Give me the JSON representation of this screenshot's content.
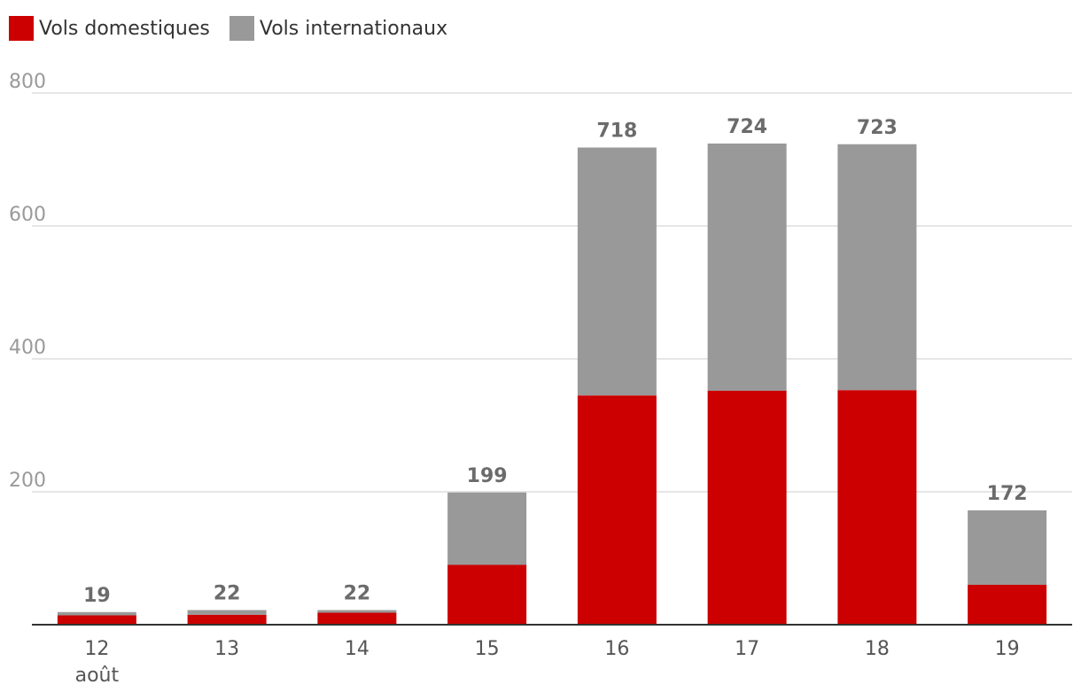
{
  "legend": {
    "domestic_label": "Vols domestiques",
    "international_label": "Vols internationaux"
  },
  "colors": {
    "domestic": "#cc0000",
    "international": "#999999",
    "grid": "#dddddd",
    "axis": "#333333"
  },
  "chart_data": {
    "type": "bar",
    "stacked": true,
    "categories": [
      "12",
      "13",
      "14",
      "15",
      "16",
      "17",
      "18",
      "19"
    ],
    "category_sublabels": [
      "août",
      "",
      "",
      "",
      "",
      "",
      "",
      ""
    ],
    "series": [
      {
        "name": "Vols domestiques",
        "values": [
          14,
          15,
          18,
          90,
          345,
          352,
          353,
          60
        ]
      },
      {
        "name": "Vols internationaux",
        "values": [
          5,
          7,
          4,
          109,
          373,
          372,
          370,
          112
        ]
      }
    ],
    "totals": [
      19,
      22,
      22,
      199,
      718,
      724,
      723,
      172
    ],
    "ylim": [
      0,
      800
    ],
    "yticks": [
      200,
      400,
      600,
      800
    ],
    "grid": true,
    "legend_position": "top-left",
    "title": "",
    "xlabel": "",
    "ylabel": ""
  }
}
